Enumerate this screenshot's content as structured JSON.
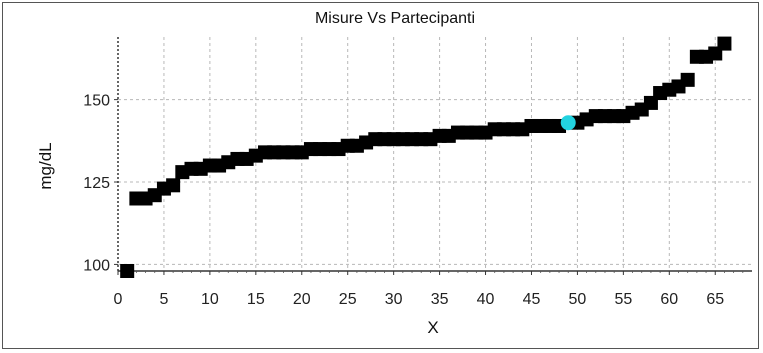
{
  "chart_data": {
    "type": "scatter",
    "title": "Misure Vs Partecipanti",
    "xlabel": "X",
    "ylabel": "mg/dL",
    "xlim": [
      0,
      69
    ],
    "ylim": [
      98,
      169
    ],
    "xticks": [
      0,
      5,
      10,
      15,
      20,
      25,
      30,
      35,
      40,
      45,
      50,
      55,
      60,
      65
    ],
    "yticks": [
      100,
      125,
      150
    ],
    "grid": true,
    "marker_color": "#000000",
    "highlight_color": "#22d3e0",
    "series": [
      {
        "points": [
          [
            1,
            98
          ],
          [
            2,
            120
          ],
          [
            3,
            120
          ],
          [
            4,
            121
          ],
          [
            5,
            123
          ],
          [
            6,
            124
          ],
          [
            7,
            128
          ],
          [
            8,
            129
          ],
          [
            9,
            129
          ],
          [
            10,
            130
          ],
          [
            11,
            130
          ],
          [
            12,
            131
          ],
          [
            13,
            132
          ],
          [
            14,
            132
          ],
          [
            15,
            133
          ],
          [
            16,
            134
          ],
          [
            17,
            134
          ],
          [
            18,
            134
          ],
          [
            19,
            134
          ],
          [
            20,
            134
          ],
          [
            21,
            135
          ],
          [
            22,
            135
          ],
          [
            23,
            135
          ],
          [
            24,
            135
          ],
          [
            25,
            136
          ],
          [
            26,
            136
          ],
          [
            27,
            137
          ],
          [
            28,
            138
          ],
          [
            29,
            138
          ],
          [
            30,
            138
          ],
          [
            31,
            138
          ],
          [
            32,
            138
          ],
          [
            33,
            138
          ],
          [
            34,
            138
          ],
          [
            35,
            139
          ],
          [
            36,
            139
          ],
          [
            37,
            140
          ],
          [
            38,
            140
          ],
          [
            39,
            140
          ],
          [
            40,
            140
          ],
          [
            41,
            141
          ],
          [
            42,
            141
          ],
          [
            43,
            141
          ],
          [
            44,
            141
          ],
          [
            45,
            142
          ],
          [
            46,
            142
          ],
          [
            47,
            142
          ],
          [
            48,
            142
          ],
          [
            50,
            143
          ],
          [
            51,
            144
          ],
          [
            52,
            145
          ],
          [
            53,
            145
          ],
          [
            54,
            145
          ],
          [
            55,
            145
          ],
          [
            56,
            146
          ],
          [
            57,
            147
          ],
          [
            58,
            149
          ],
          [
            59,
            152
          ],
          [
            60,
            153
          ],
          [
            61,
            154
          ],
          [
            62,
            156
          ],
          [
            63,
            163
          ],
          [
            64,
            163
          ],
          [
            65,
            164
          ],
          [
            66,
            167
          ]
        ]
      }
    ],
    "highlight": {
      "x": 49,
      "y": 143
    }
  }
}
